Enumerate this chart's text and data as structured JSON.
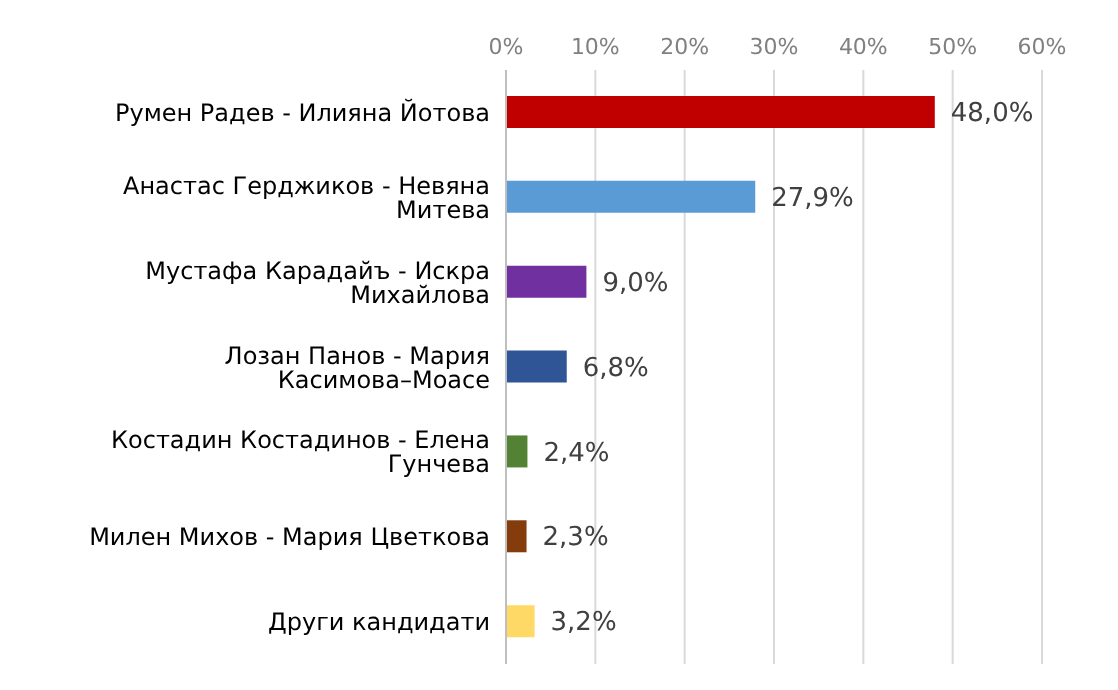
{
  "chart_data": {
    "type": "bar",
    "orientation": "horizontal",
    "categories": [
      "Румен Радев - Илияна Йотова",
      "Анастас Герджиков - Невяна Митева",
      "Мустафа Карадайъ - Искра Михайлова",
      "Лозан Панов - Мария Касимова–Моасе",
      "Костадин Костадинов - Елена Гунчева",
      "Милен Михов - Мария Цветкова",
      "Други кандидати"
    ],
    "values": [
      48.0,
      27.9,
      9.0,
      6.8,
      2.4,
      2.3,
      3.2
    ],
    "colors": [
      "#c00000",
      "#5b9bd5",
      "#7030a0",
      "#2f5597",
      "#548235",
      "#843c0c",
      "#ffd966"
    ],
    "value_labels": [
      "48,0%",
      "27,9%",
      "9,0%",
      "6,8%",
      "2,4%",
      "2,3%",
      "3,2%"
    ],
    "xlim": [
      0,
      60
    ],
    "xticks": [
      {
        "value": 0,
        "label": "0%"
      },
      {
        "value": 10,
        "label": "10%"
      },
      {
        "value": 20,
        "label": "20%"
      },
      {
        "value": 30,
        "label": "30%"
      },
      {
        "value": 40,
        "label": "40%"
      },
      {
        "value": 50,
        "label": "50%"
      },
      {
        "value": 60,
        "label": "60%"
      }
    ],
    "grid": "x"
  }
}
